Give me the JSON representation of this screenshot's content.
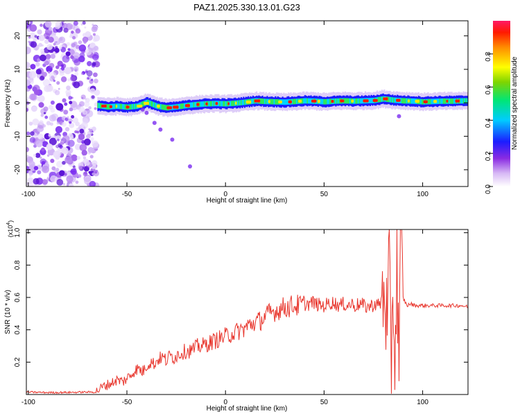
{
  "colors": {
    "snr_line": "#e8352c",
    "speckle": "#7a2cf0",
    "frame": "#000000",
    "background": "#ffffff"
  },
  "chart_data": [
    {
      "type": "heatmap",
      "title": "PAZ1.2025.330.13.01.G23",
      "xlabel": "Height of straight line (km)",
      "ylabel": "Frequency (Hz)",
      "xlim": [
        -101,
        123
      ],
      "ylim": [
        -25,
        24.5
      ],
      "x_ticks": [
        -100,
        -50,
        0,
        50,
        100
      ],
      "y_ticks": [
        -20,
        -10,
        0,
        10,
        20
      ],
      "grid": false,
      "noise_region_km": [
        -101,
        -65
      ],
      "signal_track": {
        "x": [
          -65,
          -60,
          -55,
          -50,
          -45,
          -40,
          -35,
          -30,
          -25,
          -20,
          -15,
          -10,
          -5,
          0,
          5,
          10,
          15,
          20,
          25,
          30,
          35,
          40,
          45,
          50,
          55,
          60,
          65,
          70,
          75,
          80,
          85,
          90,
          95,
          100,
          105,
          110,
          115,
          120,
          123
        ],
        "y": [
          -0.8,
          -1.2,
          -1.0,
          -1.3,
          -1.0,
          0.2,
          -1.0,
          -1.5,
          -1.2,
          -0.8,
          -0.5,
          -0.3,
          -0.2,
          -0.3,
          -0.1,
          0.2,
          0.6,
          0.4,
          0.3,
          0.2,
          0.4,
          0.6,
          0.5,
          0.3,
          0.5,
          0.6,
          0.5,
          0.6,
          0.7,
          1.2,
          0.8,
          0.6,
          0.5,
          0.3,
          0.4,
          0.5,
          0.5,
          0.6,
          0.6
        ]
      },
      "side_blobs": {
        "x": [
          -40,
          -36,
          -33,
          -27,
          -18,
          88,
          -42
        ],
        "y": [
          -3,
          -6,
          -8,
          -11,
          -19,
          -4,
          -2
        ]
      },
      "colorbar": {
        "label": "Normalized spectral amplitude",
        "range": [
          0,
          1
        ],
        "ticks": [
          0.0,
          0.2,
          0.4,
          0.6,
          0.8
        ],
        "tick_labels": [
          "0.0",
          "0.2",
          "0.4",
          "0.6",
          "0.8"
        ]
      }
    },
    {
      "type": "line",
      "xlabel": "Height of straight line (km)",
      "ylabel": "SNR (10 * v/v)",
      "scale_label": "(x10",
      "scale_exponent": "4",
      "xlim": [
        -101,
        123
      ],
      "ylim": [
        0,
        1.02
      ],
      "x_ticks": [
        -100,
        -50,
        0,
        50,
        100
      ],
      "y_ticks": [
        0.2,
        0.4,
        0.6,
        0.8,
        1.0
      ],
      "y_tick_labels": [
        "0.2",
        "0.4",
        "0.6",
        "0.8",
        "1.0"
      ],
      "grid": false,
      "series": [
        {
          "name": "SNR",
          "x": [
            -101,
            -90,
            -80,
            -70,
            -66,
            -62,
            -58,
            -55,
            -52,
            -50,
            -48,
            -46,
            -44,
            -42,
            -40,
            -38,
            -36,
            -34,
            -32,
            -30,
            -28,
            -26,
            -24,
            -22,
            -20,
            -18,
            -16,
            -14,
            -12,
            -10,
            -8,
            -6,
            -4,
            -2,
            0,
            2,
            4,
            6,
            8,
            10,
            12,
            14,
            16,
            18,
            20,
            22,
            24,
            26,
            28,
            30,
            32,
            34,
            36,
            38,
            40,
            42,
            44,
            46,
            48,
            50,
            52,
            54,
            56,
            58,
            60,
            62,
            64,
            66,
            68,
            70,
            72,
            74,
            76,
            78,
            80,
            81,
            82,
            83,
            84,
            85,
            86,
            87,
            88,
            89,
            90,
            92,
            94,
            96,
            98,
            100,
            105,
            110,
            115,
            120,
            123
          ],
          "values": [
            0.015,
            0.012,
            0.013,
            0.015,
            0.015,
            0.05,
            0.07,
            0.09,
            0.08,
            0.1,
            0.12,
            0.15,
            0.16,
            0.14,
            0.18,
            0.2,
            0.19,
            0.22,
            0.23,
            0.21,
            0.24,
            0.23,
            0.25,
            0.26,
            0.27,
            0.27,
            0.28,
            0.3,
            0.3,
            0.31,
            0.32,
            0.33,
            0.34,
            0.35,
            0.36,
            0.37,
            0.38,
            0.39,
            0.4,
            0.41,
            0.43,
            0.44,
            0.45,
            0.46,
            0.48,
            0.5,
            0.51,
            0.52,
            0.53,
            0.54,
            0.54,
            0.55,
            0.55,
            0.55,
            0.56,
            0.56,
            0.57,
            0.56,
            0.55,
            0.55,
            0.56,
            0.57,
            0.56,
            0.55,
            0.56,
            0.55,
            0.56,
            0.55,
            0.56,
            0.55,
            0.54,
            0.55,
            0.56,
            0.55,
            0.6,
            0.7,
            0.3,
            0.8,
            0.1,
            0.75,
            0.15,
            0.9,
            0.2,
            1.0,
            0.6,
            0.55,
            0.56,
            0.55,
            0.55,
            0.55,
            0.55,
            0.55,
            0.55,
            0.55,
            0.54
          ]
        }
      ]
    }
  ]
}
